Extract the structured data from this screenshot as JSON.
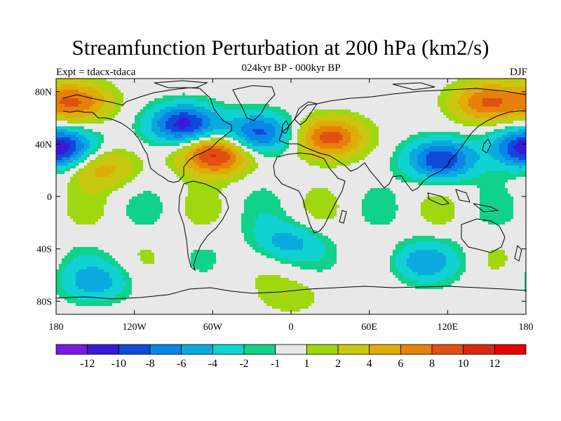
{
  "title": "Streamfunction Perturbation at 200 hPa (km2/s)",
  "subtitle": "024kyr BP - 000kyr BP",
  "left_label": "Expt = tdacx-tdaca",
  "right_label": "DJF",
  "chart_data": {
    "type": "heatmap",
    "projection": "cylindrical-equidistant",
    "variable": "streamfunction perturbation",
    "units": "km2/s",
    "level": "200 hPa",
    "season": "DJF",
    "x_range": [
      -180,
      180
    ],
    "y_range": [
      -90,
      90
    ],
    "x_ticks": [
      {
        "value": -180,
        "label": "180"
      },
      {
        "value": -120,
        "label": "120W"
      },
      {
        "value": -60,
        "label": "60W"
      },
      {
        "value": 0,
        "label": "0"
      },
      {
        "value": 60,
        "label": "60E"
      },
      {
        "value": 120,
        "label": "120E"
      },
      {
        "value": 180,
        "label": "180"
      }
    ],
    "y_ticks": [
      {
        "value": 80,
        "label": "80N"
      },
      {
        "value": 40,
        "label": "40N"
      },
      {
        "value": 0,
        "label": "0"
      },
      {
        "value": -40,
        "label": "40S"
      },
      {
        "value": -80,
        "label": "80S"
      }
    ],
    "contour_levels": [
      -12,
      -10,
      -8,
      -6,
      -4,
      -2,
      -1,
      1,
      2,
      4,
      6,
      8,
      10,
      12
    ],
    "colorbar_labels": [
      "-12",
      "-10",
      "-8",
      "-6",
      "-4",
      "-2",
      "-1",
      "1",
      "2",
      "4",
      "6",
      "8",
      "10",
      "12"
    ],
    "colors": [
      "#7a1ae0",
      "#3a18d8",
      "#1048d8",
      "#0a86e6",
      "#0aaade",
      "#10d2d2",
      "#10d28a",
      "#e8e8e8",
      "#a0d810",
      "#c8c810",
      "#e0ac08",
      "#e68008",
      "#e05010",
      "#dc2810",
      "#e80000"
    ],
    "features": [
      {
        "name": "North America low",
        "lon": -82,
        "lat": 55,
        "value": -11
      },
      {
        "name": "North Atlantic low",
        "lon": -25,
        "lat": 48,
        "value": -9
      },
      {
        "name": "Central North Pacific low",
        "lon": -178,
        "lat": 37,
        "value": -12
      },
      {
        "name": "East Asia low",
        "lon": 115,
        "lat": 28,
        "value": -10
      },
      {
        "name": "Western Atlantic high",
        "lon": -58,
        "lat": 32,
        "value": 11
      },
      {
        "name": "Eurasian high",
        "lon": 30,
        "lat": 45,
        "value": 9
      },
      {
        "name": "Arctic Siberia high",
        "lon": 150,
        "lat": 72,
        "value": 8
      },
      {
        "name": "Alaska high",
        "lon": -165,
        "lat": 72,
        "value": 8
      },
      {
        "name": "Subtropical Pacific high",
        "lon": -145,
        "lat": 22,
        "value": 5
      },
      {
        "name": "Southern Ocean trough",
        "lon": -150,
        "lat": -65,
        "value": -5
      },
      {
        "name": "South Atlantic low",
        "lon": -5,
        "lat": -35,
        "value": -5
      },
      {
        "name": "Indian Ocean low",
        "lon": 100,
        "lat": -50,
        "value": -5
      },
      {
        "name": "Antarctic positive band",
        "lon": 0,
        "lat": -75,
        "value": 2
      }
    ]
  }
}
